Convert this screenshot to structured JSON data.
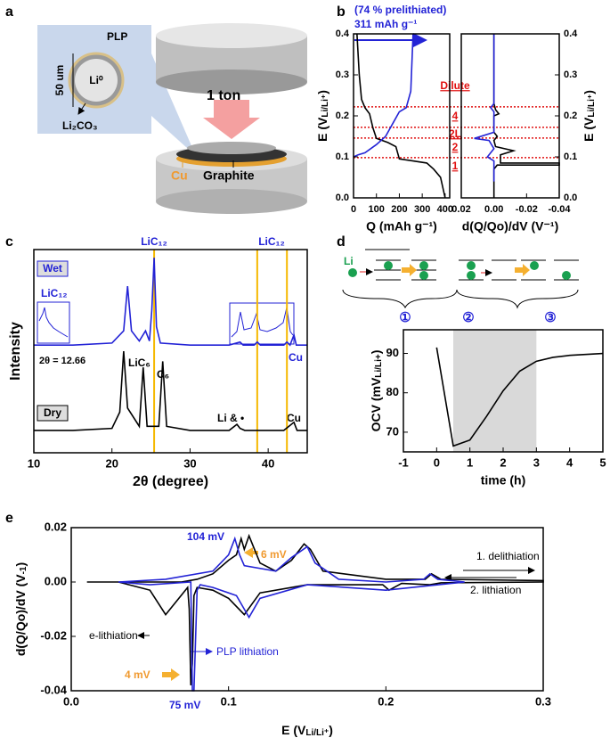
{
  "panel_letters": [
    "a",
    "b",
    "c",
    "d",
    "e"
  ],
  "diagram": {
    "plp": "PLP",
    "li0": "Li⁰",
    "size": "50 um",
    "coating": "Li₂CO₃",
    "force": "1 ton",
    "cu": "Cu",
    "graphite": "Graphite",
    "li": "Li",
    "steps": [
      "①",
      "②",
      "③"
    ]
  },
  "annotations": {
    "b": {
      "prelith": "(74 % prelithiated)",
      "capacity": "311 mAh g⁻¹",
      "stages": [
        "Dilute",
        "4",
        "2L",
        "2",
        "1"
      ]
    },
    "c": {
      "wet": "Wet",
      "dry": "Dry",
      "lic12": [
        "LiC₁₂",
        "LiC₁₂",
        "LiC₁₂"
      ],
      "theta": "2θ = 12.66",
      "lic6": "LiC₆",
      "c6": "C₆",
      "li_dot": "Li & •",
      "cu": [
        "Cu",
        "Cu"
      ]
    },
    "e": {
      "mv104": "104 mV",
      "mv6": "6 mV",
      "mv4": "4 mV",
      "mv75": "75 mV",
      "delith": "1. delithiation",
      "lith": "2. lithiation"
    }
  },
  "chart_data": [
    {
      "type": "line",
      "x_label": "Q (mAh g⁻¹)",
      "y_label": [
        "E (V",
        "Li/Li⁺",
        ")"
      ],
      "xlim": [
        0,
        420
      ],
      "ylim": [
        0,
        0.4
      ],
      "xticks": [
        0,
        100,
        200,
        300,
        400
      ],
      "yticks": [
        {
          "value": 0,
          "label": "0.0"
        },
        0.1,
        0.2,
        0.3,
        0.4
      ],
      "reference_lines": [
        0.222,
        0.172,
        0.146,
        0.098
      ],
      "reference_color": "#e01010",
      "series": [
        {
          "color": "#000000",
          "x": [
            15,
            25,
            35,
            50,
            70,
            85,
            100,
            150,
            185,
            200,
            260,
            320,
            350,
            380,
            400
          ],
          "values": [
            0.4,
            0.3,
            0.24,
            0.22,
            0.205,
            0.17,
            0.145,
            0.135,
            0.125,
            0.095,
            0.09,
            0.085,
            0.07,
            0.05,
            0.0
          ]
        },
        {
          "color": "#2323d6",
          "x": [
            0,
            20,
            50,
            100,
            140,
            170,
            200,
            230,
            250,
            260
          ],
          "values": [
            0.1,
            0.105,
            0.11,
            0.13,
            0.15,
            0.18,
            0.21,
            0.22,
            0.26,
            0.4
          ]
        }
      ]
    },
    {
      "type": "line",
      "x_label": "d(Q/Qo)/dV (V⁻¹)",
      "y_label": [
        "E (V",
        "Li/Li⁺",
        ")"
      ],
      "y_side": "right",
      "xlim": [
        0.02,
        -0.04
      ],
      "ylim": [
        0,
        0.4
      ],
      "xticks": [
        {
          "value": 0.02,
          "label": "0.02"
        },
        {
          "value": 0,
          "label": "0.00"
        },
        {
          "value": -0.02,
          "label": "-0.02"
        },
        {
          "value": -0.04,
          "label": "-0.04"
        }
      ],
      "yticks": [
        {
          "value": 0,
          "label": "0.0"
        },
        0.1,
        0.2,
        0.3,
        0.4
      ],
      "series": [
        {
          "color": "#000000",
          "x": [
            0,
            0,
            -0.001,
            -0.003,
            0,
            0,
            -0.002,
            0,
            -0.001,
            -0.012,
            -0.004,
            -0.004,
            -0.04,
            -0.04,
            -0.002,
            0,
            0
          ],
          "values": [
            0.4,
            0.23,
            0.215,
            0.205,
            0.2,
            0.16,
            0.15,
            0.14,
            0.125,
            0.115,
            0.105,
            0.085,
            0.085,
            0.08,
            0.08,
            0.07,
            0
          ]
        },
        {
          "color": "#2323d6",
          "x": [
            0,
            0,
            0.002,
            0,
            0,
            0.012,
            0.003,
            0,
            0.004,
            0,
            0
          ],
          "values": [
            0.4,
            0.23,
            0.22,
            0.21,
            0.16,
            0.145,
            0.14,
            0.12,
            0.1,
            0.09,
            0.04
          ]
        }
      ]
    },
    {
      "type": "line",
      "x_label": "2θ (degree)",
      "y_label": "Intensity",
      "xlim": [
        10,
        45
      ],
      "ylim": [
        0,
        1
      ],
      "xticks": [
        10,
        20,
        30,
        40
      ],
      "reference_lines": [
        25.4,
        38.6,
        42.4
      ],
      "reference_color": "#f5b800",
      "series": [
        {
          "color": "#2323d6",
          "x": [
            10,
            15,
            20,
            21.5,
            22,
            22.5,
            23.5,
            24.3,
            24.8,
            25.1,
            25.4,
            25.7,
            26.2,
            30,
            35,
            36.4,
            36.8,
            38.2,
            38.6,
            39,
            42,
            42.4,
            42.8,
            43.3,
            43.6,
            45
          ],
          "values": [
            0.53,
            0.53,
            0.54,
            0.6,
            0.82,
            0.6,
            0.55,
            0.6,
            0.55,
            0.7,
            0.96,
            0.62,
            0.54,
            0.53,
            0.53,
            0.545,
            0.53,
            0.53,
            0.545,
            0.53,
            0.53,
            0.545,
            0.53,
            0.58,
            0.53,
            0.53
          ]
        },
        {
          "color": "#000000",
          "x": [
            10,
            15,
            20,
            21,
            21.5,
            22,
            23.5,
            24,
            24.5,
            26,
            26.5,
            27,
            30,
            35,
            36,
            36.4,
            37,
            42,
            43.3,
            43.7,
            45
          ],
          "values": [
            0.11,
            0.11,
            0.12,
            0.2,
            0.5,
            0.22,
            0.13,
            0.42,
            0.13,
            0.13,
            0.45,
            0.13,
            0.11,
            0.11,
            0.14,
            0.12,
            0.11,
            0.11,
            0.15,
            0.11,
            0.11
          ]
        }
      ]
    },
    {
      "type": "line",
      "x_label": "time (h)",
      "y_label": [
        "OCV (mV",
        "Li/Li+",
        ")"
      ],
      "xlim": [
        -1,
        5
      ],
      "ylim": [
        65,
        96
      ],
      "xticks": [
        -1,
        0,
        1,
        2,
        3,
        4,
        5
      ],
      "yticks": [
        70,
        80,
        90
      ],
      "shade": [
        0.5,
        3
      ],
      "series": [
        {
          "color": "#000000",
          "x": [
            0,
            0.5,
            1,
            1.5,
            2,
            2.5,
            3,
            3.5,
            4,
            5
          ],
          "values": [
            91.5,
            66.5,
            68,
            74,
            80.5,
            85.5,
            88,
            89,
            89.5,
            90
          ]
        }
      ]
    },
    {
      "type": "line",
      "x_label": [
        "E (V",
        "Li/Li⁺",
        ")"
      ],
      "y_label": [
        "d(Q/Qo)/dV (V",
        "-1",
        ")"
      ],
      "xlim": [
        0,
        0.3
      ],
      "ylim": [
        -0.04,
        0.02
      ],
      "xticks": [
        {
          "value": 0,
          "label": "0.0"
        },
        0.1,
        0.2,
        0.3
      ],
      "yticks": [
        {
          "value": -0.04,
          "label": "-0.04"
        },
        {
          "value": -0.02,
          "label": "-0.02"
        },
        {
          "value": 0,
          "label": "0.00"
        },
        0.02
      ],
      "series": [
        {
          "name": "e-lithiation",
          "color": "#000000",
          "x": [
            0.01,
            0.07,
            0.08,
            0.09,
            0.1,
            0.105,
            0.108,
            0.11,
            0.113,
            0.12,
            0.13,
            0.14,
            0.148,
            0.152,
            0.16,
            0.2,
            0.225,
            0.229,
            0.235,
            0.3,
            0.3,
            0.235,
            0.228,
            0.21,
            0.202,
            0.198,
            0.15,
            0.12,
            0.11,
            0.1,
            0.09,
            0.08,
            0.078,
            0.077,
            0.076,
            0.075,
            0.074,
            0.06,
            0.05,
            0.03,
            0.01
          ],
          "values": [
            0,
            0,
            0.001,
            0.003,
            0.008,
            0.01,
            0.016,
            0.012,
            0.017,
            0.007,
            0.004,
            0.008,
            0.014,
            0.012,
            0.004,
            0.001,
            0.001,
            0.003,
            0.001,
            0.0005,
            0,
            -0.0003,
            -0.001,
            -0.0005,
            -0.003,
            -0.001,
            -0.001,
            -0.004,
            -0.012,
            -0.006,
            -0.003,
            -0.002,
            -0.005,
            -0.03,
            -0.038,
            -0.01,
            -0.002,
            -0.012,
            -0.003,
            0,
            0
          ]
        },
        {
          "name": "PLP lithiation",
          "color": "#2323d6",
          "x": [
            0.03,
            0.06,
            0.09,
            0.1,
            0.104,
            0.107,
            0.11,
            0.13,
            0.14,
            0.15,
            0.155,
            0.17,
            0.2,
            0.224,
            0.228,
            0.233,
            0.25,
            0.2,
            0.15,
            0.12,
            0.113,
            0.105,
            0.09,
            0.082,
            0.08,
            0.078,
            0.077,
            0.076,
            0.05,
            0.03
          ],
          "values": [
            0,
            0.001,
            0.004,
            0.01,
            0.016,
            0.01,
            0.006,
            0.004,
            0.009,
            0.013,
            0.007,
            0.001,
            0,
            0.001,
            0.003,
            0.001,
            0,
            -0.003,
            -0.001,
            -0.006,
            -0.013,
            -0.005,
            -0.002,
            -0.001,
            -0.003,
            -0.04,
            -0.04,
            0,
            -0.001,
            0
          ]
        }
      ]
    }
  ]
}
